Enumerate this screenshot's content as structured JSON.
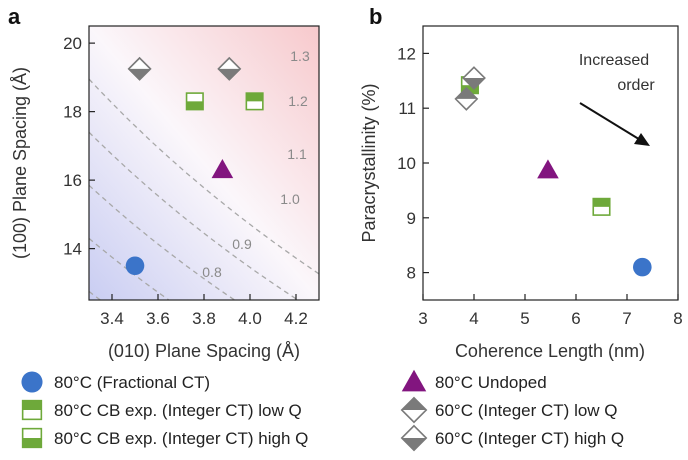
{
  "chart_data": [
    {
      "panel": "a",
      "type": "scatter",
      "xlabel": "(010) Plane Spacing (Å)",
      "ylabel": "(100) Plane Spacing (Å)",
      "xlim": [
        3.3,
        4.3
      ],
      "ylim": [
        12.5,
        20.5
      ],
      "xticks": [
        "3.4",
        "3.6",
        "3.8",
        "4.0",
        "4.2"
      ],
      "yticks": [
        "14",
        "16",
        "18",
        "20"
      ],
      "background": "gradient from light blue (lower-left) to light pink (upper-right)",
      "contours": [
        {
          "label": "0.8",
          "color": "#a8a8a8"
        },
        {
          "label": "0.9",
          "color": "#a8a8a8"
        },
        {
          "label": "1.0",
          "color": "#a8a8a8"
        },
        {
          "label": "1.1",
          "color": "#a8a8a8"
        },
        {
          "label": "1.2",
          "color": "#a8a8a8"
        },
        {
          "label": "1.3",
          "color": "#a8a8a8"
        }
      ],
      "points": [
        {
          "series": "80°C (Fractional CT)",
          "x": 3.5,
          "y": 13.5
        },
        {
          "series": "80°C Undoped",
          "x": 3.88,
          "y": 16.3
        },
        {
          "series": "80°C CB exp. (Integer CT) high Q",
          "x": 3.76,
          "y": 18.3
        },
        {
          "series": "80°C CB exp. (Integer CT) low Q",
          "x": 4.02,
          "y": 18.3
        },
        {
          "series": "60°C (Integer CT) low Q",
          "x": 3.52,
          "y": 19.25
        },
        {
          "series": "60°C (Integer CT) low Q",
          "x": 3.91,
          "y": 19.25
        },
        {
          "series": "60°C (Integer CT) high Q",
          "x": 3.52,
          "y": 19.25
        },
        {
          "series": "60°C (Integer CT) high Q",
          "x": 3.91,
          "y": 19.25
        }
      ]
    },
    {
      "panel": "b",
      "type": "scatter",
      "xlabel": "Coherence Length (nm)",
      "ylabel": "Paracrystallinity (%)",
      "xlim": [
        3,
        8
      ],
      "ylim": [
        7.5,
        12.5
      ],
      "xticks": [
        "3",
        "4",
        "5",
        "6",
        "7",
        "8"
      ],
      "yticks": [
        "8",
        "9",
        "10",
        "11",
        "12"
      ],
      "annotation": [
        "Increased",
        "order"
      ],
      "points": [
        {
          "series": "80°C (Fractional CT)",
          "x": 7.3,
          "y": 8.1
        },
        {
          "series": "80°C Undoped",
          "x": 5.45,
          "y": 9.87
        },
        {
          "series": "80°C CB exp. (Integer CT) low Q",
          "x": 6.5,
          "y": 9.2
        },
        {
          "series": "80°C CB exp. (Integer CT) high Q",
          "x": 3.92,
          "y": 11.42
        },
        {
          "series": "60°C (Integer CT) low Q",
          "x": 3.85,
          "y": 11.17
        },
        {
          "series": "60°C (Integer CT) high Q",
          "x": 4.0,
          "y": 11.55
        }
      ]
    }
  ],
  "legend": [
    {
      "label": "80°C (Fractional CT)",
      "marker": "circle",
      "color": "#3b74c9"
    },
    {
      "label": "80°C Undoped",
      "marker": "triangle",
      "color": "#82157f"
    },
    {
      "label": "80°C CB exp. (Integer CT) low Q",
      "marker": "square-half-top",
      "color": "#6ea93a"
    },
    {
      "label": "60°C (Integer CT) low Q",
      "marker": "diamond-half-top",
      "color": "#7a7a7a"
    },
    {
      "label": "80°C CB exp. (Integer CT) high Q",
      "marker": "square-half-bottom",
      "color": "#6ea93a"
    },
    {
      "label": "60°C (Integer CT) high Q",
      "marker": "diamond-half-bottom",
      "color": "#7a7a7a"
    }
  ],
  "colors": {
    "blue": "#3b74c9",
    "purple": "#82157f",
    "green": "#6ea93a",
    "gray": "#7a7a7a",
    "contour": "#a8a8a8"
  }
}
